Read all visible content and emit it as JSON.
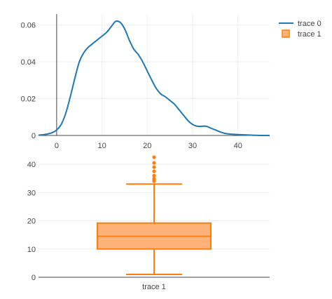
{
  "chart_data": [
    {
      "type": "line",
      "series": [
        {
          "name": "trace 0",
          "color": "#1f77b4",
          "x": [
            -4,
            -3,
            -2,
            -1,
            0,
            1,
            2,
            3,
            4,
            5,
            6,
            7,
            8,
            9,
            10,
            11,
            12,
            13,
            14,
            15,
            16,
            17,
            18,
            19,
            20,
            21,
            22,
            23,
            24,
            25,
            26,
            27,
            28,
            29,
            30,
            31,
            32,
            33,
            34,
            35,
            36,
            37,
            38,
            40,
            42,
            44,
            47
          ],
          "y": [
            0.0002,
            0.0004,
            0.0008,
            0.0015,
            0.003,
            0.006,
            0.012,
            0.021,
            0.031,
            0.04,
            0.045,
            0.048,
            0.05,
            0.052,
            0.054,
            0.056,
            0.059,
            0.062,
            0.0615,
            0.058,
            0.052,
            0.047,
            0.044,
            0.04,
            0.035,
            0.03,
            0.0255,
            0.0225,
            0.021,
            0.019,
            0.017,
            0.014,
            0.011,
            0.008,
            0.006,
            0.005,
            0.005,
            0.005,
            0.004,
            0.003,
            0.002,
            0.0012,
            0.0008,
            0.0005,
            0.0003,
            0.0001,
            0.0
          ]
        }
      ],
      "xlim": [
        -4,
        47
      ],
      "ylim": [
        0,
        0.066
      ],
      "xticks": [
        0,
        10,
        20,
        30,
        40
      ],
      "yticks": [
        0,
        0.02,
        0.04,
        0.06
      ],
      "xtick_labels": [
        "0",
        "10",
        "20",
        "30",
        "40"
      ],
      "ytick_labels": [
        "0",
        "0.02",
        "0.04",
        "0.06"
      ],
      "grid": true
    },
    {
      "type": "box",
      "categories": [
        "trace 1"
      ],
      "series": [
        {
          "name": "trace 1",
          "color": "#ff7f0e",
          "fill": "#ffb27a",
          "whisker_low": 1,
          "q1": 10,
          "median": 14.5,
          "q3": 19.2,
          "whisker_high": 33,
          "outliers": [
            34,
            34.5,
            35,
            36,
            37.5,
            39,
            40.5,
            42.5
          ]
        }
      ],
      "ylim": [
        0,
        44
      ],
      "yticks": [
        0,
        10,
        20,
        30,
        40
      ],
      "ytick_labels": [
        "0",
        "10",
        "20",
        "30",
        "40"
      ],
      "grid": true
    }
  ],
  "legend": {
    "items": [
      {
        "label": "trace 0",
        "symbol": "line",
        "color": "#1f77b4"
      },
      {
        "label": "trace 1",
        "symbol": "box",
        "color": "#ff7f0e",
        "fill": "#ffb27a"
      }
    ],
    "placement": "top-right"
  }
}
